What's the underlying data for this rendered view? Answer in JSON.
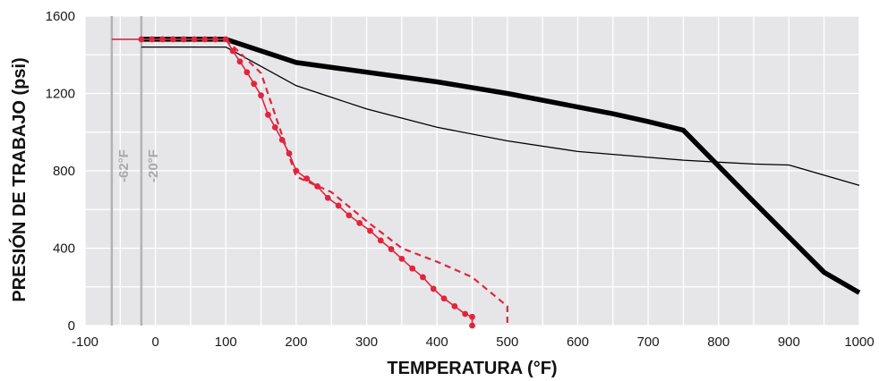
{
  "chart_data": {
    "type": "line",
    "xlabel": "TEMPERATURA (°F)",
    "ylabel": "PRESIÓN DE TRABAJO (psi)",
    "xlim": [
      -100,
      1000
    ],
    "ylim": [
      0,
      1600
    ],
    "x_ticks": [
      "-100",
      "0",
      "100",
      "200",
      "300",
      "400",
      "500",
      "600",
      "700",
      "800",
      "900",
      "1000"
    ],
    "y_ticks": [
      "0",
      "400",
      "800",
      "1200",
      "1600"
    ],
    "grid": true,
    "background": "#e6e6e8",
    "reference_lines": [
      {
        "x": -62,
        "label": "-62°F",
        "color": "#b3b3b3"
      },
      {
        "x": -20,
        "label": "-20°F",
        "color": "#b3b3b3"
      }
    ],
    "series": [
      {
        "style": "thick-black",
        "color": "#000000",
        "x": [
          -20,
          100,
          200,
          400,
          500,
          650,
          700,
          750,
          850,
          950,
          1000
        ],
        "y": [
          1480,
          1480,
          1360,
          1260,
          1200,
          1095,
          1055,
          1010,
          640,
          275,
          170
        ]
      },
      {
        "style": "thin-black",
        "color": "#000000",
        "x": [
          -20,
          100,
          200,
          300,
          400,
          500,
          600,
          700,
          750,
          800,
          850,
          900,
          1000
        ],
        "y": [
          1440,
          1440,
          1240,
          1120,
          1025,
          955,
          900,
          870,
          855,
          845,
          835,
          830,
          725
        ]
      },
      {
        "style": "red-solid-dots",
        "color": "#e0253f",
        "x": [
          -62,
          -20,
          -5,
          10,
          25,
          40,
          55,
          70,
          85,
          100,
          110,
          120,
          130,
          140,
          150,
          160,
          170,
          180,
          190,
          200,
          215,
          230,
          245,
          260,
          275,
          290,
          305,
          320,
          335,
          350,
          365,
          380,
          395,
          410,
          425,
          440,
          450,
          450
        ],
        "y": [
          1480,
          1480,
          1480,
          1480,
          1480,
          1480,
          1480,
          1480,
          1480,
          1480,
          1420,
          1365,
          1310,
          1250,
          1190,
          1090,
          1025,
          960,
          890,
          800,
          760,
          720,
          660,
          620,
          570,
          530,
          490,
          440,
          395,
          345,
          295,
          250,
          190,
          140,
          100,
          60,
          45,
          0
        ]
      },
      {
        "style": "red-dashed",
        "color": "#e0253f",
        "x": [
          100,
          150,
          200,
          250,
          300,
          350,
          400,
          450,
          500,
          500
        ],
        "y": [
          1480,
          1305,
          770,
          690,
          540,
          400,
          330,
          250,
          100,
          0
        ]
      }
    ]
  }
}
